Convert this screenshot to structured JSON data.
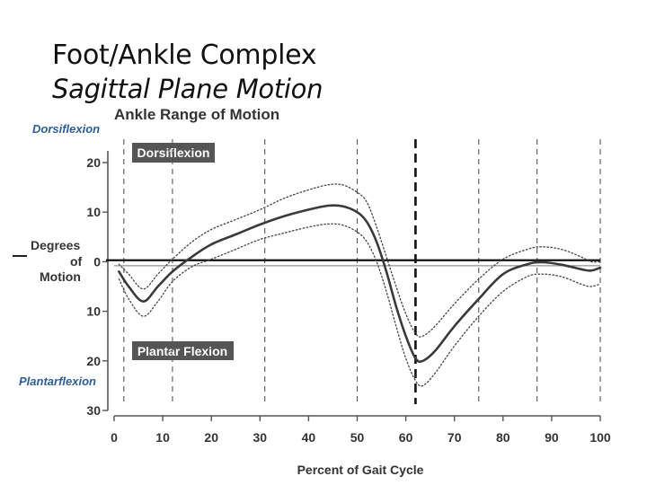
{
  "slide": {
    "title": "Foot/Ankle Complex",
    "subtitle": "Sagittal Plane Motion"
  },
  "labels": {
    "dorsiflexion_side": "Dorsiflexion",
    "plantarflexion_side": "Plantarflexion",
    "dorsiflexion_box": "Dorsiflexion",
    "plantarflexion_box": "Plantar Flexion",
    "ylabel_line1": "Degrees",
    "ylabel_line2": "of",
    "ylabel_line3": "Motion"
  },
  "chart_data": {
    "type": "line",
    "title": "Ankle Range of Motion",
    "xlabel": "Percent of Gait Cycle",
    "ylabel": "Degrees of Motion",
    "xlim": [
      0,
      100
    ],
    "ylim": [
      -30,
      20
    ],
    "x_ticks": [
      0,
      10,
      20,
      30,
      40,
      50,
      60,
      70,
      80,
      90,
      100
    ],
    "y_ticks": [
      {
        "value": 20,
        "label": "20"
      },
      {
        "value": 10,
        "label": "10"
      },
      {
        "value": 0,
        "label": "0"
      },
      {
        "value": -10,
        "label": "10"
      },
      {
        "value": -20,
        "label": "20"
      },
      {
        "value": -30,
        "label": "30"
      }
    ],
    "vertical_dashed_lines": [
      2,
      12,
      31,
      50,
      62,
      75,
      87,
      100
    ],
    "heavy_dashed_line": 62,
    "series": [
      {
        "role": "mean",
        "x": [
          1,
          3,
          6,
          9,
          12,
          16,
          20,
          25,
          30,
          35,
          40,
          44,
          47,
          50,
          52,
          54,
          56,
          58,
          60,
          62,
          63.5,
          66,
          70,
          75,
          80,
          85,
          88,
          92,
          96,
          98,
          100
        ],
        "y": [
          -2,
          -5,
          -8,
          -5,
          -2,
          1,
          3.5,
          5.5,
          7.5,
          9.2,
          10.5,
          11.3,
          11.2,
          10,
          8,
          4,
          -2,
          -9,
          -15,
          -19.5,
          -20,
          -18,
          -13,
          -7.5,
          -2.5,
          -0.5,
          -0.1,
          -0.6,
          -1.5,
          -1.8,
          -1.2
        ]
      },
      {
        "role": "upper-bound",
        "x": [
          1,
          3,
          6,
          9,
          12,
          16,
          20,
          25,
          30,
          35,
          40,
          44,
          47,
          50,
          52,
          54,
          56,
          58,
          60,
          62,
          63.5,
          66,
          70,
          75,
          80,
          85,
          88,
          92,
          96,
          98,
          100
        ],
        "y": [
          -0.5,
          -2.5,
          -5.5,
          -2.5,
          0.5,
          4,
          6.5,
          8.5,
          10.5,
          12.8,
          14.5,
          15.5,
          15.5,
          14,
          12,
          7,
          1,
          -5,
          -10.5,
          -14.5,
          -15,
          -13,
          -8.5,
          -3.5,
          0.5,
          2.5,
          3,
          2.5,
          1,
          0,
          0
        ]
      },
      {
        "role": "lower-bound",
        "x": [
          1,
          3,
          6,
          9,
          12,
          16,
          20,
          25,
          30,
          35,
          40,
          44,
          47,
          50,
          52,
          54,
          56,
          58,
          60,
          62,
          63.5,
          66,
          70,
          75,
          80,
          85,
          88,
          92,
          96,
          98,
          100
        ],
        "y": [
          -3.5,
          -7.5,
          -11,
          -8,
          -4,
          -1,
          0.5,
          2.5,
          4.5,
          5.8,
          7,
          7.6,
          7.4,
          6,
          4,
          0,
          -6,
          -13,
          -19.5,
          -24,
          -25,
          -22.5,
          -17,
          -11,
          -6,
          -3,
          -2.5,
          -3,
          -4.5,
          -5,
          -4.5
        ]
      }
    ],
    "reference_lines": [
      {
        "role": "heavy-horizontal",
        "y": 0.3
      },
      {
        "role": "light-horizontal",
        "y": -0.8
      }
    ],
    "grid": false,
    "colors": {
      "mean": "#3a3a3a",
      "band": "#444444",
      "blue": "#2f5d98",
      "box": "#555555"
    }
  }
}
